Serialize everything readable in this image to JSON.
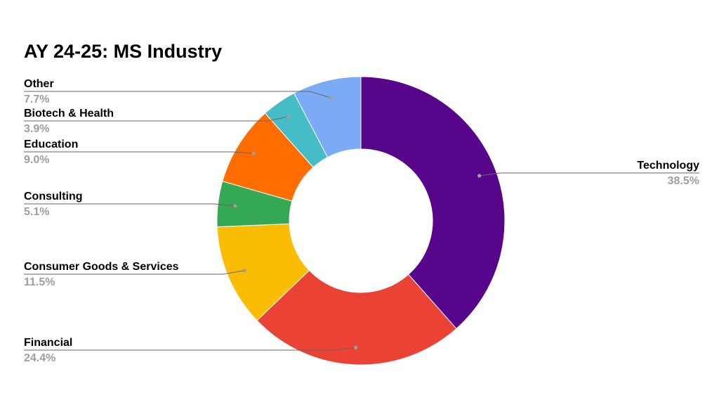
{
  "chart_data": {
    "type": "pie",
    "donut": true,
    "title": "AY 24-25: MS Industry",
    "slices": [
      {
        "label": "Technology",
        "value": 38.5,
        "display": "38.5%",
        "color": "#57068c"
      },
      {
        "label": "Financial",
        "value": 24.4,
        "display": "24.4%",
        "color": "#ea4335"
      },
      {
        "label": "Consumer Goods & Services",
        "value": 11.5,
        "display": "11.5%",
        "color": "#fbbc04"
      },
      {
        "label": "Consulting",
        "value": 5.1,
        "display": "5.1%",
        "color": "#34a853"
      },
      {
        "label": "Education",
        "value": 9.0,
        "display": "9.0%",
        "color": "#ff6d01"
      },
      {
        "label": "Biotech & Health",
        "value": 3.9,
        "display": "3.9%",
        "color": "#46bdc6"
      },
      {
        "label": "Other",
        "value": 7.7,
        "display": "7.7%",
        "color": "#7baaf7"
      }
    ],
    "legend": "none",
    "label_placement": "outside-with-leader-lines"
  }
}
